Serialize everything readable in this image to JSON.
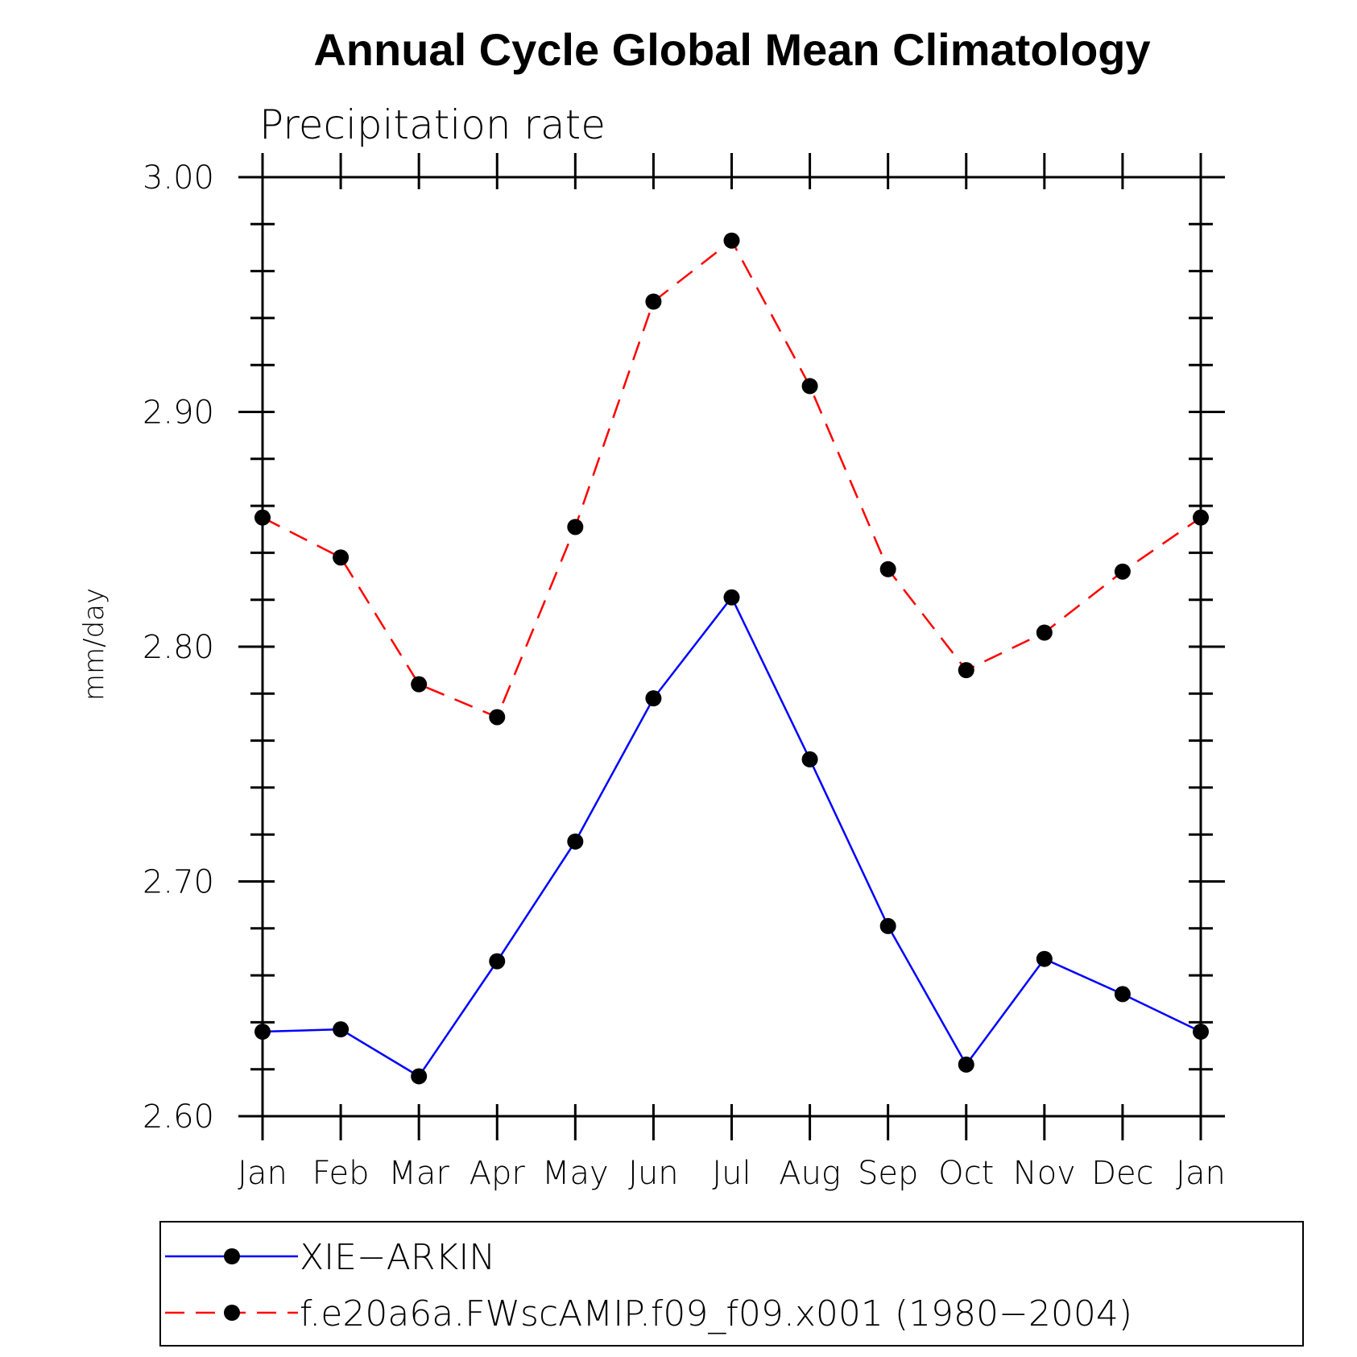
{
  "chart_data": {
    "type": "line",
    "title": "Annual Cycle Global Mean Climatology",
    "subtitle": "Precipitation rate",
    "ylabel": "mm/day",
    "xlabel": "",
    "categories": [
      "Jan",
      "Feb",
      "Mar",
      "Apr",
      "May",
      "Jun",
      "Jul",
      "Aug",
      "Sep",
      "Oct",
      "Nov",
      "Dec",
      "Jan"
    ],
    "ylim": [
      2.6,
      3.0
    ],
    "yticks": [
      "2.60",
      "2.70",
      "2.80",
      "2.90",
      "3.00"
    ],
    "grid": false,
    "legend_position": "bottom",
    "series": [
      {
        "name": "XIE−ARKIN",
        "color": "#0000ff",
        "line_style": "solid",
        "marker": "filled-circle",
        "values": [
          2.636,
          2.637,
          2.617,
          2.666,
          2.717,
          2.778,
          2.821,
          2.752,
          2.681,
          2.622,
          2.667,
          2.652,
          2.636
        ]
      },
      {
        "name": "f.e20a6a.FWscAMIP.f09_f09.x001 (1980−2004)",
        "color": "#ff0000",
        "line_style": "dashed",
        "marker": "filled-circle",
        "values": [
          2.855,
          2.838,
          2.784,
          2.77,
          2.851,
          2.947,
          2.973,
          2.911,
          2.833,
          2.79,
          2.806,
          2.832,
          2.855
        ]
      }
    ]
  }
}
